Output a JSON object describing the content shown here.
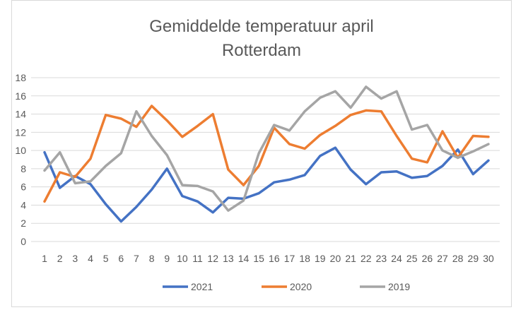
{
  "chart_data": {
    "type": "line",
    "title_lines": [
      "Gemiddelde temperatuur april",
      "Rotterdam"
    ],
    "xlabel": "",
    "ylabel": "",
    "categories": [
      1,
      2,
      3,
      4,
      5,
      6,
      7,
      8,
      9,
      10,
      11,
      12,
      13,
      14,
      15,
      16,
      17,
      18,
      19,
      20,
      21,
      22,
      23,
      24,
      25,
      26,
      27,
      28,
      29,
      30
    ],
    "ylim": [
      0,
      18
    ],
    "yticks": [
      0,
      2,
      4,
      6,
      8,
      10,
      12,
      14,
      16,
      18
    ],
    "grid": true,
    "legend_position": "bottom",
    "series": [
      {
        "name": "2021",
        "color": "#4472C4",
        "values": [
          9.8,
          5.9,
          7.2,
          6.3,
          4.1,
          2.2,
          3.8,
          5.7,
          8.0,
          5.0,
          4.4,
          3.2,
          4.8,
          4.7,
          5.3,
          6.5,
          6.8,
          7.3,
          9.4,
          10.3,
          7.9,
          6.3,
          7.6,
          7.7,
          7.0,
          7.2,
          8.3,
          10.1,
          7.4,
          8.9
        ]
      },
      {
        "name": "2020",
        "color": "#ED7D31",
        "values": [
          4.4,
          7.6,
          7.1,
          9.1,
          13.9,
          13.5,
          12.6,
          14.9,
          13.3,
          11.5,
          12.7,
          14.0,
          7.9,
          6.2,
          8.3,
          12.5,
          10.7,
          10.2,
          11.7,
          12.7,
          13.9,
          14.4,
          14.3,
          11.6,
          9.1,
          8.7,
          12.1,
          9.2,
          11.6,
          11.5
        ]
      },
      {
        "name": "2019",
        "color": "#A5A5A5",
        "values": [
          7.8,
          9.8,
          6.4,
          6.6,
          8.3,
          9.7,
          14.3,
          11.6,
          9.5,
          6.2,
          6.1,
          5.5,
          3.4,
          4.5,
          9.7,
          12.8,
          12.2,
          14.3,
          15.8,
          16.5,
          14.7,
          17.0,
          15.7,
          16.5,
          12.3,
          12.8,
          10.0,
          9.2,
          9.9,
          10.7
        ]
      }
    ]
  }
}
